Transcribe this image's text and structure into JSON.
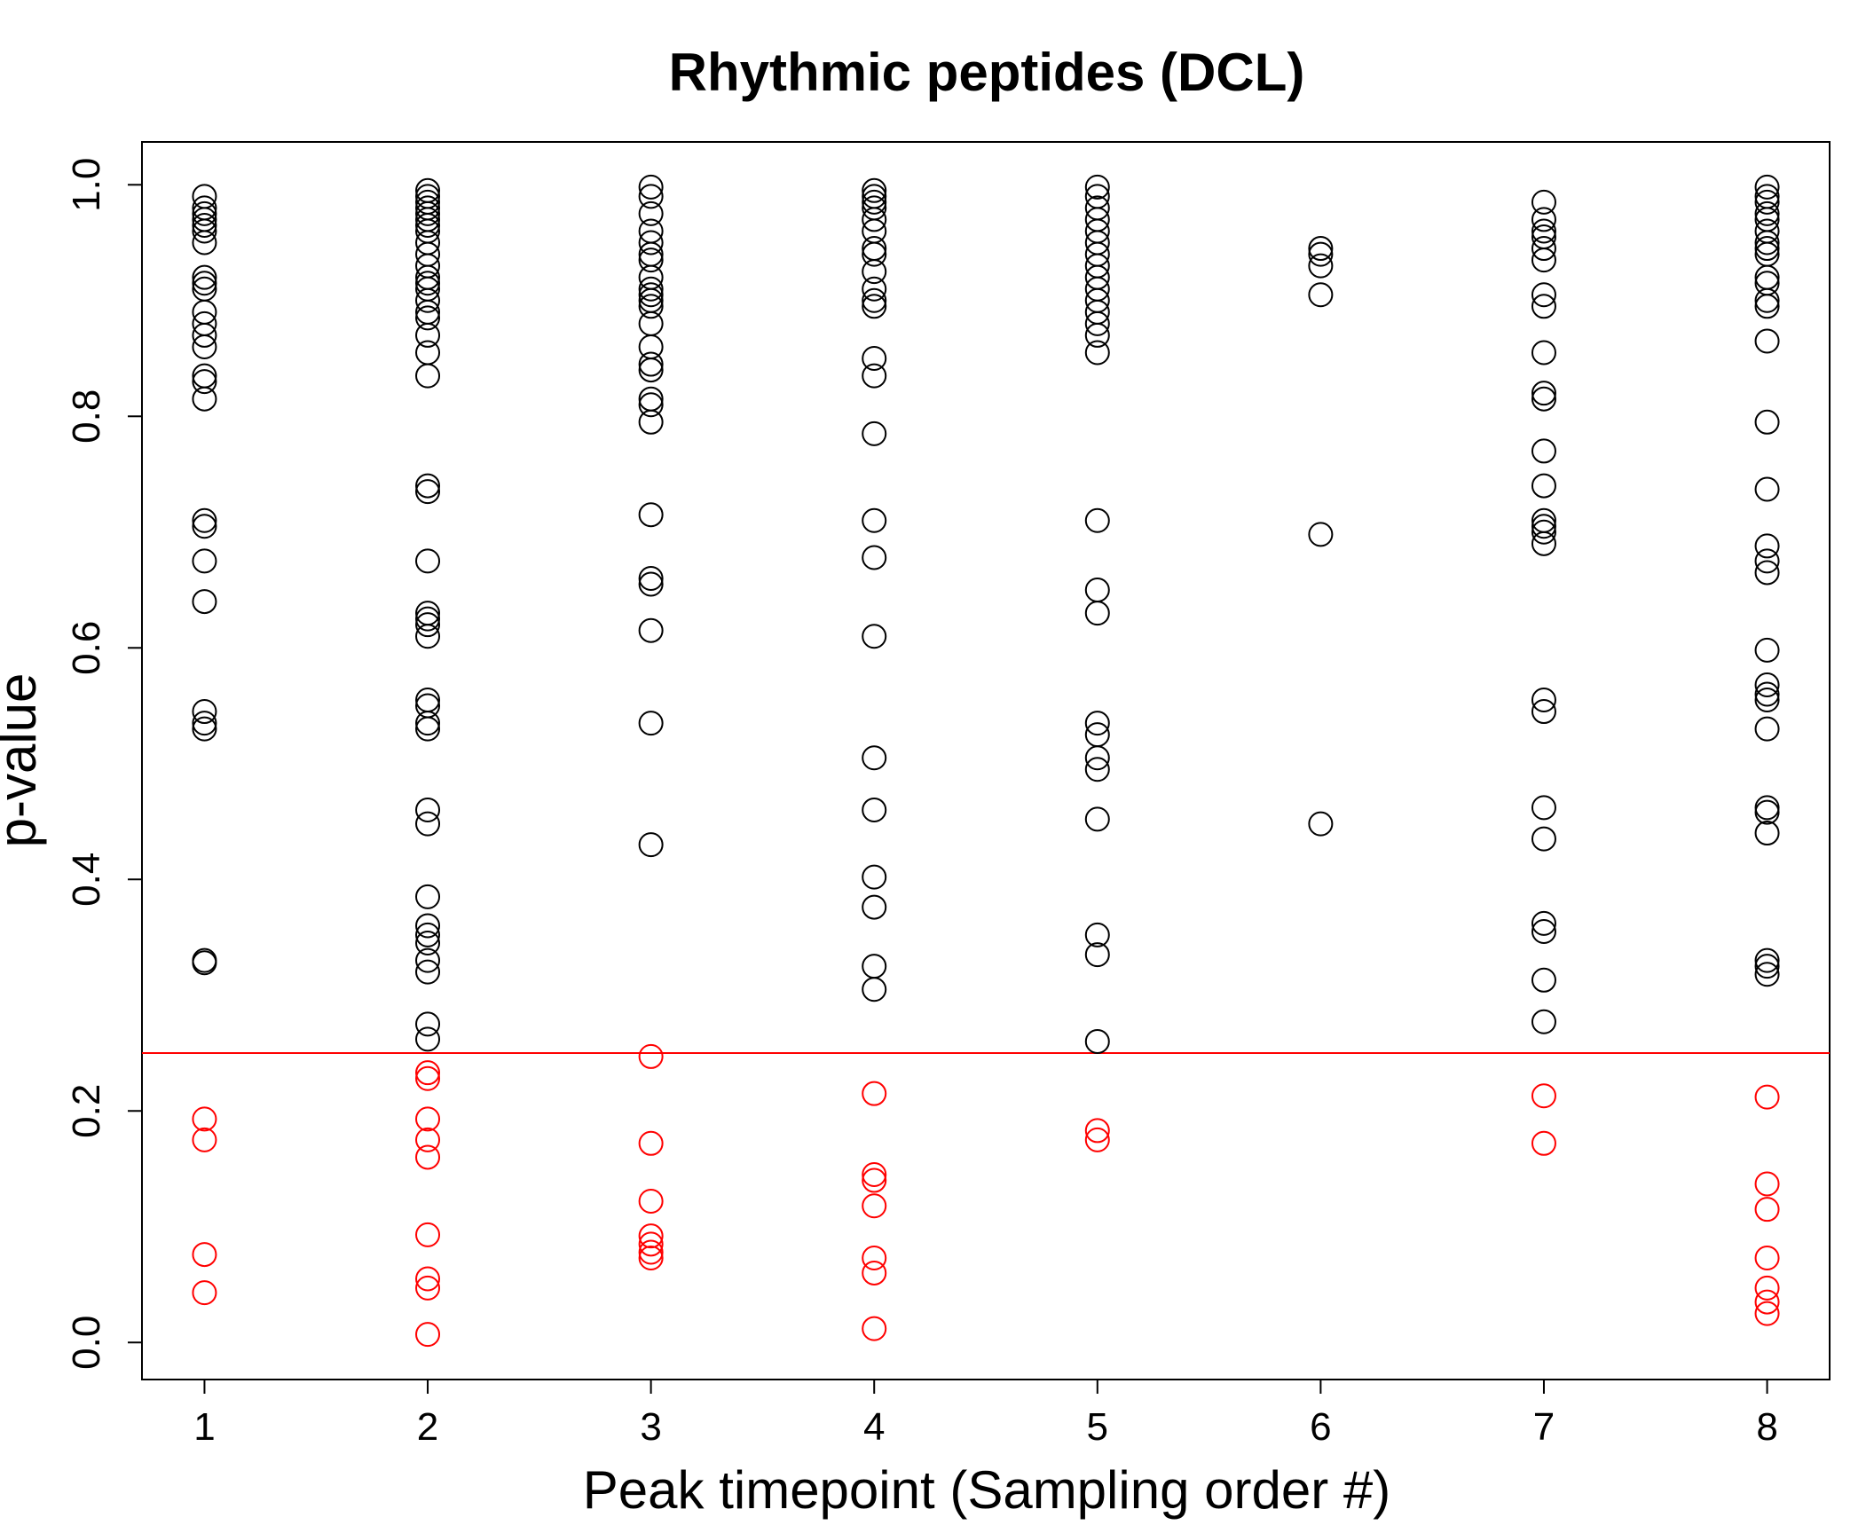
{
  "chart_data": {
    "type": "scatter",
    "title": "Rhythmic peptides (DCL)",
    "xlabel": "Peak timepoint (Sampling order #)",
    "ylabel": "p-value",
    "xlim": [
      0.72,
      8.28
    ],
    "ylim": [
      -0.032,
      1.037
    ],
    "x_ticks": [
      1,
      2,
      3,
      4,
      5,
      6,
      7,
      8
    ],
    "x_tick_labels": [
      "1",
      "2",
      "3",
      "4",
      "5",
      "6",
      "7",
      "8"
    ],
    "y_ticks": [
      0.0,
      0.2,
      0.4,
      0.6,
      0.8,
      1.0
    ],
    "y_tick_labels": [
      "0.0",
      "0.2",
      "0.4",
      "0.6",
      "0.8",
      "1.0"
    ],
    "grid": false,
    "legend": "none",
    "reference_line": {
      "y": 0.25,
      "color": "#ff0000"
    },
    "series": [
      {
        "color": "#000000",
        "points": [
          [
            1,
            0.99
          ],
          [
            1,
            0.98
          ],
          [
            1,
            0.975
          ],
          [
            1,
            0.97
          ],
          [
            1,
            0.965
          ],
          [
            1,
            0.96
          ],
          [
            1,
            0.95
          ],
          [
            1,
            0.92
          ],
          [
            1,
            0.915
          ],
          [
            1,
            0.91
          ],
          [
            1,
            0.89
          ],
          [
            1,
            0.88
          ],
          [
            1,
            0.87
          ],
          [
            1,
            0.86
          ],
          [
            1,
            0.835
          ],
          [
            1,
            0.83
          ],
          [
            1,
            0.815
          ],
          [
            1,
            0.71
          ],
          [
            1,
            0.705
          ],
          [
            1,
            0.675
          ],
          [
            1,
            0.64
          ],
          [
            1,
            0.545
          ],
          [
            1,
            0.535
          ],
          [
            1,
            0.53
          ],
          [
            1,
            0.33
          ],
          [
            1,
            0.328
          ],
          [
            2,
            0.995
          ],
          [
            2,
            0.99
          ],
          [
            2,
            0.985
          ],
          [
            2,
            0.98
          ],
          [
            2,
            0.975
          ],
          [
            2,
            0.97
          ],
          [
            2,
            0.965
          ],
          [
            2,
            0.96
          ],
          [
            2,
            0.95
          ],
          [
            2,
            0.94
          ],
          [
            2,
            0.93
          ],
          [
            2,
            0.92
          ],
          [
            2,
            0.915
          ],
          [
            2,
            0.91
          ],
          [
            2,
            0.9
          ],
          [
            2,
            0.89
          ],
          [
            2,
            0.885
          ],
          [
            2,
            0.87
          ],
          [
            2,
            0.855
          ],
          [
            2,
            0.835
          ],
          [
            2,
            0.74
          ],
          [
            2,
            0.735
          ],
          [
            2,
            0.675
          ],
          [
            2,
            0.63
          ],
          [
            2,
            0.625
          ],
          [
            2,
            0.62
          ],
          [
            2,
            0.61
          ],
          [
            2,
            0.555
          ],
          [
            2,
            0.55
          ],
          [
            2,
            0.535
          ],
          [
            2,
            0.53
          ],
          [
            2,
            0.46
          ],
          [
            2,
            0.448
          ],
          [
            2,
            0.385
          ],
          [
            2,
            0.36
          ],
          [
            2,
            0.352
          ],
          [
            2,
            0.345
          ],
          [
            2,
            0.33
          ],
          [
            2,
            0.32
          ],
          [
            2,
            0.275
          ],
          [
            2,
            0.262
          ],
          [
            3,
            0.998
          ],
          [
            3,
            0.99
          ],
          [
            3,
            0.975
          ],
          [
            3,
            0.96
          ],
          [
            3,
            0.95
          ],
          [
            3,
            0.94
          ],
          [
            3,
            0.935
          ],
          [
            3,
            0.92
          ],
          [
            3,
            0.91
          ],
          [
            3,
            0.905
          ],
          [
            3,
            0.9
          ],
          [
            3,
            0.895
          ],
          [
            3,
            0.88
          ],
          [
            3,
            0.86
          ],
          [
            3,
            0.845
          ],
          [
            3,
            0.84
          ],
          [
            3,
            0.815
          ],
          [
            3,
            0.81
          ],
          [
            3,
            0.795
          ],
          [
            3,
            0.715
          ],
          [
            3,
            0.66
          ],
          [
            3,
            0.655
          ],
          [
            3,
            0.615
          ],
          [
            3,
            0.535
          ],
          [
            3,
            0.43
          ],
          [
            4,
            0.995
          ],
          [
            4,
            0.99
          ],
          [
            4,
            0.985
          ],
          [
            4,
            0.98
          ],
          [
            4,
            0.97
          ],
          [
            4,
            0.96
          ],
          [
            4,
            0.945
          ],
          [
            4,
            0.94
          ],
          [
            4,
            0.925
          ],
          [
            4,
            0.91
          ],
          [
            4,
            0.9
          ],
          [
            4,
            0.895
          ],
          [
            4,
            0.85
          ],
          [
            4,
            0.835
          ],
          [
            4,
            0.785
          ],
          [
            4,
            0.71
          ],
          [
            4,
            0.678
          ],
          [
            4,
            0.61
          ],
          [
            4,
            0.505
          ],
          [
            4,
            0.46
          ],
          [
            4,
            0.402
          ],
          [
            4,
            0.376
          ],
          [
            4,
            0.325
          ],
          [
            4,
            0.305
          ],
          [
            5,
            0.998
          ],
          [
            5,
            0.99
          ],
          [
            5,
            0.98
          ],
          [
            5,
            0.97
          ],
          [
            5,
            0.96
          ],
          [
            5,
            0.95
          ],
          [
            5,
            0.94
          ],
          [
            5,
            0.93
          ],
          [
            5,
            0.92
          ],
          [
            5,
            0.91
          ],
          [
            5,
            0.9
          ],
          [
            5,
            0.89
          ],
          [
            5,
            0.88
          ],
          [
            5,
            0.87
          ],
          [
            5,
            0.855
          ],
          [
            5,
            0.71
          ],
          [
            5,
            0.65
          ],
          [
            5,
            0.63
          ],
          [
            5,
            0.535
          ],
          [
            5,
            0.525
          ],
          [
            5,
            0.505
          ],
          [
            5,
            0.495
          ],
          [
            5,
            0.452
          ],
          [
            5,
            0.352
          ],
          [
            5,
            0.335
          ],
          [
            5,
            0.26
          ],
          [
            6,
            0.945
          ],
          [
            6,
            0.94
          ],
          [
            6,
            0.93
          ],
          [
            6,
            0.905
          ],
          [
            6,
            0.698
          ],
          [
            6,
            0.448
          ],
          [
            7,
            0.985
          ],
          [
            7,
            0.97
          ],
          [
            7,
            0.96
          ],
          [
            7,
            0.955
          ],
          [
            7,
            0.945
          ],
          [
            7,
            0.935
          ],
          [
            7,
            0.905
          ],
          [
            7,
            0.895
          ],
          [
            7,
            0.855
          ],
          [
            7,
            0.82
          ],
          [
            7,
            0.815
          ],
          [
            7,
            0.77
          ],
          [
            7,
            0.74
          ],
          [
            7,
            0.71
          ],
          [
            7,
            0.705
          ],
          [
            7,
            0.7
          ],
          [
            7,
            0.69
          ],
          [
            7,
            0.555
          ],
          [
            7,
            0.545
          ],
          [
            7,
            0.462
          ],
          [
            7,
            0.435
          ],
          [
            7,
            0.362
          ],
          [
            7,
            0.355
          ],
          [
            7,
            0.313
          ],
          [
            7,
            0.277
          ],
          [
            8,
            0.998
          ],
          [
            8,
            0.99
          ],
          [
            8,
            0.985
          ],
          [
            8,
            0.975
          ],
          [
            8,
            0.97
          ],
          [
            8,
            0.96
          ],
          [
            8,
            0.95
          ],
          [
            8,
            0.945
          ],
          [
            8,
            0.94
          ],
          [
            8,
            0.92
          ],
          [
            8,
            0.915
          ],
          [
            8,
            0.9
          ],
          [
            8,
            0.895
          ],
          [
            8,
            0.865
          ],
          [
            8,
            0.795
          ],
          [
            8,
            0.737
          ],
          [
            8,
            0.688
          ],
          [
            8,
            0.675
          ],
          [
            8,
            0.665
          ],
          [
            8,
            0.598
          ],
          [
            8,
            0.568
          ],
          [
            8,
            0.56
          ],
          [
            8,
            0.555
          ],
          [
            8,
            0.53
          ],
          [
            8,
            0.462
          ],
          [
            8,
            0.458
          ],
          [
            8,
            0.44
          ],
          [
            8,
            0.33
          ],
          [
            8,
            0.325
          ],
          [
            8,
            0.318
          ]
        ]
      },
      {
        "color": "#ff0000",
        "points": [
          [
            1,
            0.193
          ],
          [
            1,
            0.175
          ],
          [
            1,
            0.076
          ],
          [
            1,
            0.043
          ],
          [
            2,
            0.233
          ],
          [
            2,
            0.228
          ],
          [
            2,
            0.193
          ],
          [
            2,
            0.175
          ],
          [
            2,
            0.16
          ],
          [
            2,
            0.093
          ],
          [
            2,
            0.055
          ],
          [
            2,
            0.047
          ],
          [
            2,
            0.007
          ],
          [
            3,
            0.247
          ],
          [
            3,
            0.172
          ],
          [
            3,
            0.122
          ],
          [
            3,
            0.092
          ],
          [
            3,
            0.085
          ],
          [
            3,
            0.078
          ],
          [
            3,
            0.073
          ],
          [
            4,
            0.215
          ],
          [
            4,
            0.145
          ],
          [
            4,
            0.14
          ],
          [
            4,
            0.118
          ],
          [
            4,
            0.073
          ],
          [
            4,
            0.06
          ],
          [
            4,
            0.012
          ],
          [
            5,
            0.183
          ],
          [
            5,
            0.175
          ],
          [
            7,
            0.213
          ],
          [
            7,
            0.172
          ],
          [
            8,
            0.212
          ],
          [
            8,
            0.137
          ],
          [
            8,
            0.115
          ],
          [
            8,
            0.073
          ],
          [
            8,
            0.047
          ],
          [
            8,
            0.035
          ],
          [
            8,
            0.025
          ]
        ]
      }
    ]
  }
}
